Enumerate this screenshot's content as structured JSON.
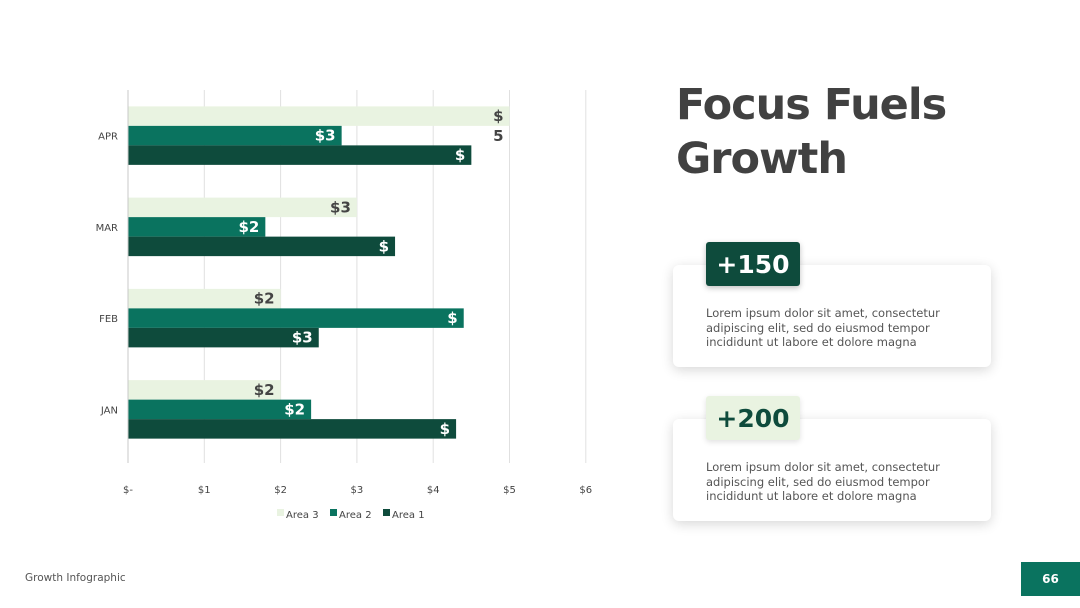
{
  "slide": {
    "title": "Focus Fuels Growth",
    "footer_label": "Growth Infographic",
    "page_number": "66"
  },
  "cards": [
    {
      "badge": "+150",
      "text": "Lorem ipsum dolor sit amet, consectetur adipiscing elit, sed do eiusmod tempor incididunt ut labore et dolore magna"
    },
    {
      "badge": "+200",
      "text": "Lorem ipsum dolor sit amet, consectetur adipiscing elit, sed do eiusmod tempor incididunt ut labore et dolore magna"
    }
  ],
  "colors": {
    "area1": "#0e4b3c",
    "area2": "#0a735f",
    "area3": "#e9f3e1",
    "grid": "#e0e0e0",
    "label_dark": "#444444",
    "label_light": "#ffffff"
  },
  "chart_data": {
    "type": "bar",
    "orientation": "horizontal",
    "categories": [
      "JAN",
      "FEB",
      "MAR",
      "APR"
    ],
    "series": [
      {
        "name": "Area 3",
        "values": [
          2.0,
          2.0,
          3.0,
          5.0
        ],
        "labels": [
          "$2",
          "$2",
          "$3",
          "$\n5"
        ]
      },
      {
        "name": "Area 2",
        "values": [
          2.4,
          4.4,
          1.8,
          2.8
        ],
        "labels": [
          "$2",
          "$",
          "$2",
          "$3"
        ]
      },
      {
        "name": "Area 1",
        "values": [
          4.3,
          2.5,
          3.5,
          4.5
        ],
        "labels": [
          "$",
          "$3",
          "$",
          "$"
        ]
      }
    ],
    "xticks": [
      "$-",
      "$1",
      "$2",
      "$3",
      "$4",
      "$5",
      "$6"
    ],
    "xlim": [
      0,
      6
    ],
    "grid": true,
    "legend": "bottom"
  }
}
